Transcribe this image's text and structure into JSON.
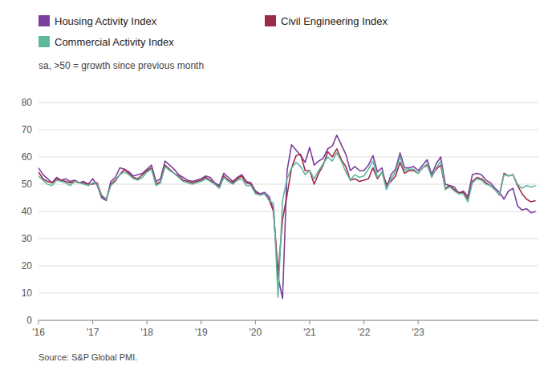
{
  "chart_data": {
    "type": "line",
    "subtitle": "sa, >50 = growth since previous month",
    "source": "Source: S&P Global PMI.",
    "legend": "top",
    "grid": true,
    "ylim": [
      0,
      80
    ],
    "yticks": [
      0,
      10,
      20,
      30,
      40,
      50,
      60,
      70,
      80
    ],
    "xlim": [
      2016,
      2025.2167
    ],
    "xticks": [
      {
        "value": 2016,
        "label": "'16"
      },
      {
        "value": 2017,
        "label": "'17"
      },
      {
        "value": 2018,
        "label": "'18"
      },
      {
        "value": 2019,
        "label": "'19"
      },
      {
        "value": 2020,
        "label": "'20"
      },
      {
        "value": 2021,
        "label": "'21"
      },
      {
        "value": 2022,
        "label": "'22"
      },
      {
        "value": 2023,
        "label": "'23"
      }
    ],
    "x": [
      2016,
      2016.0833,
      2016.1667,
      2016.25,
      2016.3333,
      2016.4167,
      2016.5,
      2016.5833,
      2016.6667,
      2016.75,
      2016.8333,
      2016.9167,
      2017,
      2017.0833,
      2017.1667,
      2017.25,
      2017.3333,
      2017.4167,
      2017.5,
      2017.5833,
      2017.6667,
      2017.75,
      2017.8333,
      2017.9167,
      2018,
      2018.0833,
      2018.1667,
      2018.25,
      2018.3333,
      2018.4167,
      2018.5,
      2018.5833,
      2018.6667,
      2018.75,
      2018.8333,
      2018.9167,
      2019,
      2019.0833,
      2019.1667,
      2019.25,
      2019.3333,
      2019.4167,
      2019.5,
      2019.5833,
      2019.6667,
      2019.75,
      2019.8333,
      2019.9167,
      2020,
      2020.0833,
      2020.1667,
      2020.25,
      2020.3333,
      2020.4167,
      2020.5,
      2020.5833,
      2020.6667,
      2020.75,
      2020.8333,
      2020.9167,
      2021,
      2021.0833,
      2021.1667,
      2021.25,
      2021.3333,
      2021.4167,
      2021.5,
      2021.5833,
      2021.6667,
      2021.75,
      2021.8333,
      2021.9167,
      2022,
      2022.0833,
      2022.1667,
      2022.25,
      2022.3333,
      2022.4167,
      2022.5,
      2022.5833,
      2022.6667,
      2022.75,
      2022.8333,
      2022.9167,
      2023,
      2023.0833,
      2023.1667,
      2023.25,
      2023.3333,
      2023.4167,
      2023.5,
      2023.5833,
      2023.6667,
      2023.75,
      2023.8333,
      2023.9167,
      2024,
      2024.0833,
      2024.1667,
      2024.25,
      2024.3333,
      2024.4167,
      2024.5,
      2024.5833,
      2024.6667,
      2024.75,
      2024.8333,
      2024.9167,
      2025,
      2025.0833,
      2025.1667
    ],
    "series": [
      {
        "name": "Housing Activity Index",
        "color": "#7B3F9E",
        "values": [
          56.0,
          53.5,
          52.0,
          50.5,
          52.5,
          51.5,
          52.0,
          51.0,
          51.5,
          50.5,
          51.0,
          50.0,
          52.0,
          49.5,
          45.0,
          44.0,
          51.0,
          52.5,
          56.0,
          55.5,
          54.5,
          53.0,
          53.5,
          54.0,
          55.5,
          57.0,
          51.0,
          52.0,
          58.5,
          57.0,
          55.5,
          53.5,
          52.5,
          51.5,
          51.0,
          51.5,
          52.0,
          53.0,
          52.5,
          50.5,
          49.5,
          54.0,
          52.5,
          51.0,
          52.5,
          53.5,
          51.0,
          50.5,
          47.5,
          46.5,
          47.0,
          45.5,
          40.5,
          16.0,
          8.0,
          55.0,
          64.5,
          62.5,
          60.5,
          58.0,
          63.5,
          57.0,
          58.5,
          59.5,
          63.0,
          64.0,
          68.0,
          64.5,
          61.0,
          55.0,
          56.5,
          55.0,
          55.0,
          57.0,
          60.5,
          54.5,
          56.0,
          48.5,
          53.5,
          55.5,
          61.5,
          56.0,
          56.0,
          56.5,
          55.0,
          57.0,
          59.0,
          53.5,
          57.5,
          60.0,
          50.0,
          49.5,
          49.0,
          46.5,
          47.5,
          45.5,
          53.5,
          54.0,
          53.5,
          51.5,
          50.5,
          48.5,
          47.0,
          44.5,
          47.5,
          48.5,
          42.0,
          40.5,
          41.0,
          39.5,
          40.0
        ]
      },
      {
        "name": "Civil Engineering Index",
        "color": "#9E2A4A",
        "values": [
          54.5,
          52.0,
          51.0,
          50.5,
          52.0,
          51.5,
          51.0,
          50.5,
          51.0,
          50.5,
          50.5,
          50.0,
          50.0,
          50.5,
          45.5,
          44.5,
          50.0,
          51.5,
          53.5,
          55.5,
          54.0,
          52.5,
          52.0,
          53.5,
          55.0,
          56.0,
          50.0,
          51.0,
          57.0,
          55.5,
          54.0,
          53.0,
          51.5,
          51.0,
          50.5,
          51.0,
          51.5,
          52.5,
          51.5,
          50.0,
          49.0,
          53.0,
          51.5,
          50.5,
          52.0,
          53.0,
          50.5,
          50.0,
          47.0,
          46.0,
          46.5,
          44.5,
          40.0,
          17.0,
          37.0,
          46.0,
          56.0,
          60.5,
          61.0,
          55.0,
          55.0,
          50.0,
          54.0,
          57.0,
          62.0,
          60.0,
          63.0,
          59.0,
          56.5,
          51.5,
          52.0,
          51.0,
          51.5,
          52.0,
          56.0,
          52.0,
          54.5,
          50.0,
          51.0,
          53.0,
          58.0,
          54.0,
          55.0,
          55.0,
          54.0,
          56.0,
          57.0,
          53.0,
          55.5,
          57.0,
          48.5,
          49.5,
          48.0,
          47.0,
          47.0,
          44.5,
          51.0,
          52.5,
          52.0,
          50.5,
          49.5,
          48.0,
          46.0,
          54.0,
          53.0,
          53.5,
          49.5,
          46.5,
          44.5,
          43.5,
          44.0
        ]
      },
      {
        "name": "Commercial Activity Index",
        "color": "#5EB89E",
        "values": [
          53.0,
          51.5,
          50.0,
          49.5,
          51.5,
          51.0,
          50.5,
          49.5,
          51.0,
          50.5,
          50.0,
          49.5,
          50.5,
          50.0,
          46.0,
          44.5,
          49.5,
          51.0,
          53.5,
          54.5,
          53.5,
          52.0,
          51.5,
          52.5,
          54.5,
          55.5,
          49.5,
          50.5,
          56.5,
          55.0,
          54.0,
          52.5,
          51.0,
          50.5,
          50.0,
          50.5,
          51.0,
          52.0,
          51.0,
          50.0,
          48.5,
          52.5,
          51.0,
          50.0,
          51.5,
          52.0,
          49.5,
          49.5,
          46.5,
          46.0,
          46.5,
          44.0,
          43.0,
          8.5,
          44.0,
          52.0,
          56.0,
          58.0,
          56.5,
          53.5,
          55.0,
          52.0,
          55.0,
          57.5,
          60.0,
          58.5,
          61.5,
          58.5,
          54.5,
          51.5,
          53.5,
          52.5,
          53.0,
          55.5,
          58.5,
          52.5,
          54.5,
          48.0,
          52.0,
          54.5,
          60.0,
          55.0,
          55.5,
          55.5,
          54.0,
          56.0,
          57.5,
          52.5,
          56.0,
          58.5,
          48.0,
          49.0,
          47.5,
          46.5,
          46.5,
          43.5,
          50.5,
          52.0,
          51.5,
          50.0,
          49.5,
          48.0,
          46.0,
          53.5,
          53.0,
          53.5,
          50.0,
          48.5,
          49.5,
          49.0,
          49.5
        ]
      }
    ]
  }
}
